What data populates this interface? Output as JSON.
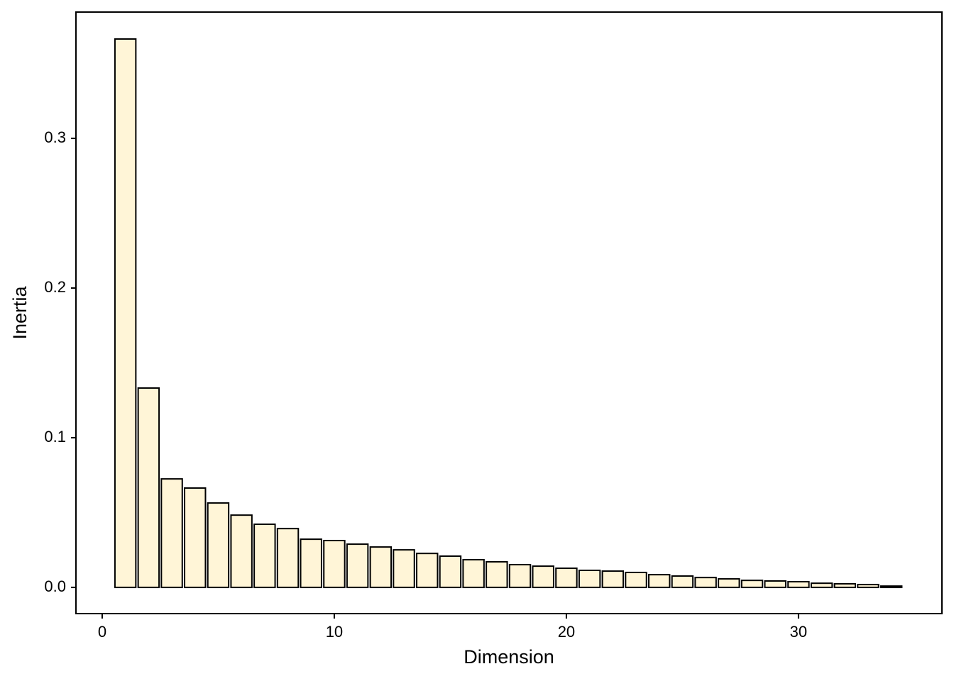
{
  "chart_data": {
    "type": "bar",
    "x_label": "Dimension",
    "y_label": "Inertia",
    "x": [
      1,
      2,
      3,
      4,
      5,
      6,
      7,
      8,
      9,
      10,
      11,
      12,
      13,
      14,
      15,
      16,
      17,
      18,
      19,
      20,
      21,
      22,
      23,
      24,
      25,
      26,
      27,
      28,
      29,
      30,
      31,
      32,
      33,
      34
    ],
    "values": [
      0.3664,
      0.1332,
      0.0725,
      0.0664,
      0.0564,
      0.0483,
      0.0422,
      0.0393,
      0.0322,
      0.0313,
      0.0289,
      0.027,
      0.0251,
      0.0227,
      0.0209,
      0.0185,
      0.0171,
      0.0152,
      0.0142,
      0.0128,
      0.0114,
      0.0109,
      0.01,
      0.0085,
      0.0076,
      0.0066,
      0.0057,
      0.0047,
      0.0043,
      0.0038,
      0.0028,
      0.0024,
      0.0019,
      0.0009
    ],
    "color": "#fff5d7",
    "edge_color": "#000000",
    "xlim": [
      -1.13,
      36.18
    ],
    "xticks": [
      0,
      10,
      20,
      30
    ],
    "ylim": [
      -0.0175,
      0.3844
    ],
    "yticks": [
      {
        "value": 0,
        "label": "0.0"
      },
      0.1,
      0.2,
      0.3
    ],
    "grid": false
  }
}
